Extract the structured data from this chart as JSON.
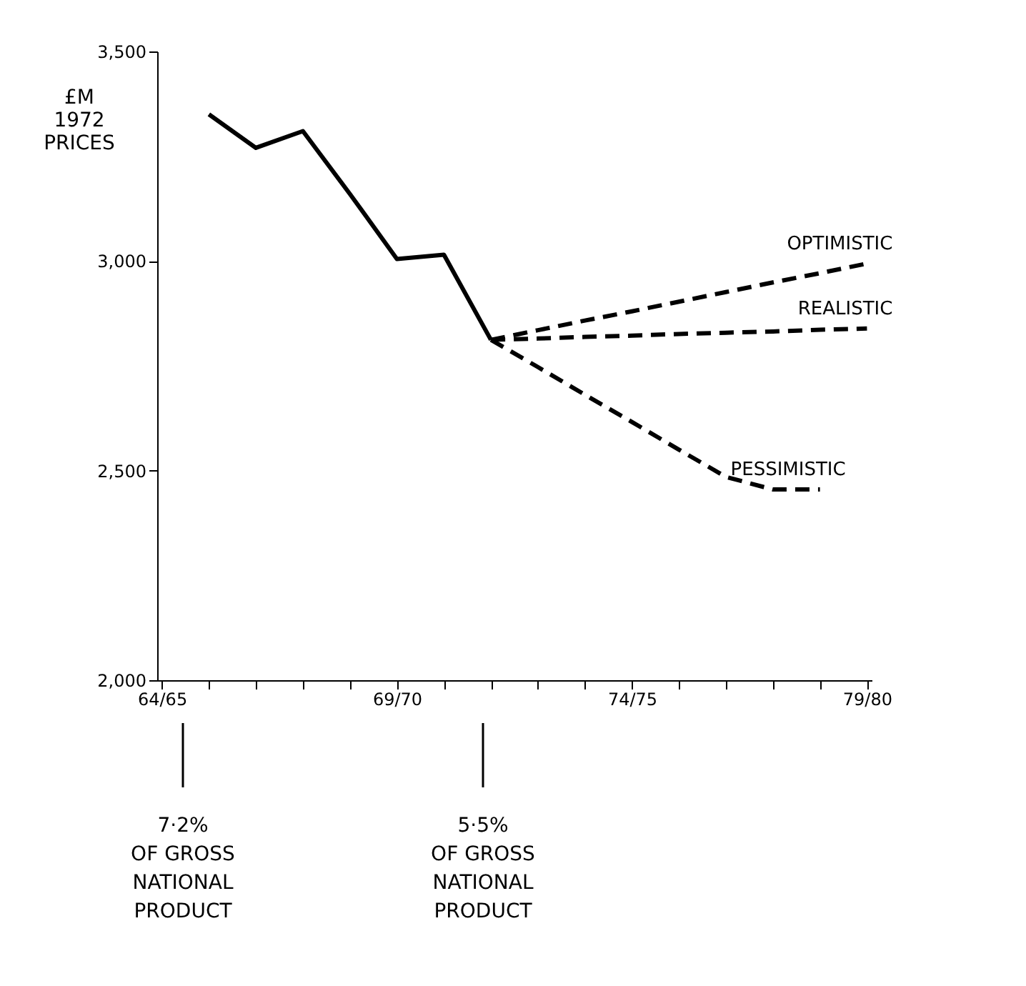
{
  "chart_data": {
    "type": "line",
    "ylabel": "£M 1972 PRICES",
    "categories": [
      "64/65",
      null,
      null,
      null,
      null,
      "69/70",
      null,
      null,
      null,
      null,
      "74/75",
      null,
      null,
      null,
      null,
      "79/80"
    ],
    "ylim": [
      2000,
      3500
    ],
    "yticks": [
      {
        "value": 2000,
        "label": "2,000"
      },
      {
        "value": 2500,
        "label": "2,500"
      },
      {
        "value": 3000,
        "label": "3,000"
      },
      {
        "value": 3500,
        "label": "3,500"
      }
    ],
    "grid": false,
    "series": [
      {
        "color": "#000000",
        "line_style": "solid",
        "values": [
          null,
          3350,
          3270,
          3310,
          3160,
          3005,
          3015,
          2812,
          null,
          null,
          null,
          null,
          null,
          null,
          null,
          null
        ]
      },
      {
        "name": "OPTIMISTIC",
        "color": "#000000",
        "line_style": "dashed",
        "values": [
          null,
          null,
          null,
          null,
          null,
          null,
          null,
          2812,
          2835,
          2858,
          2880,
          2903,
          2926,
          2949,
          2971,
          2994
        ]
      },
      {
        "name": "REALISTIC",
        "color": "#000000",
        "line_style": "dashed",
        "values": [
          null,
          null,
          null,
          null,
          null,
          null,
          null,
          2812,
          2815,
          2819,
          2822,
          2826,
          2829,
          2832,
          2836,
          2839
        ]
      },
      {
        "name": "PESSIMISTIC",
        "color": "#000000",
        "line_style": "dashed",
        "values": [
          null,
          null,
          null,
          null,
          null,
          null,
          null,
          2812,
          2747,
          2681,
          2616,
          2550,
          2485,
          2455,
          2455,
          null
        ]
      }
    ],
    "annotations": [
      "7·2%\nOF GROSS\nNATIONAL\nPRODUCT",
      "5·5%\nOF GROSS\nNATIONAL\nPRODUCT"
    ]
  }
}
